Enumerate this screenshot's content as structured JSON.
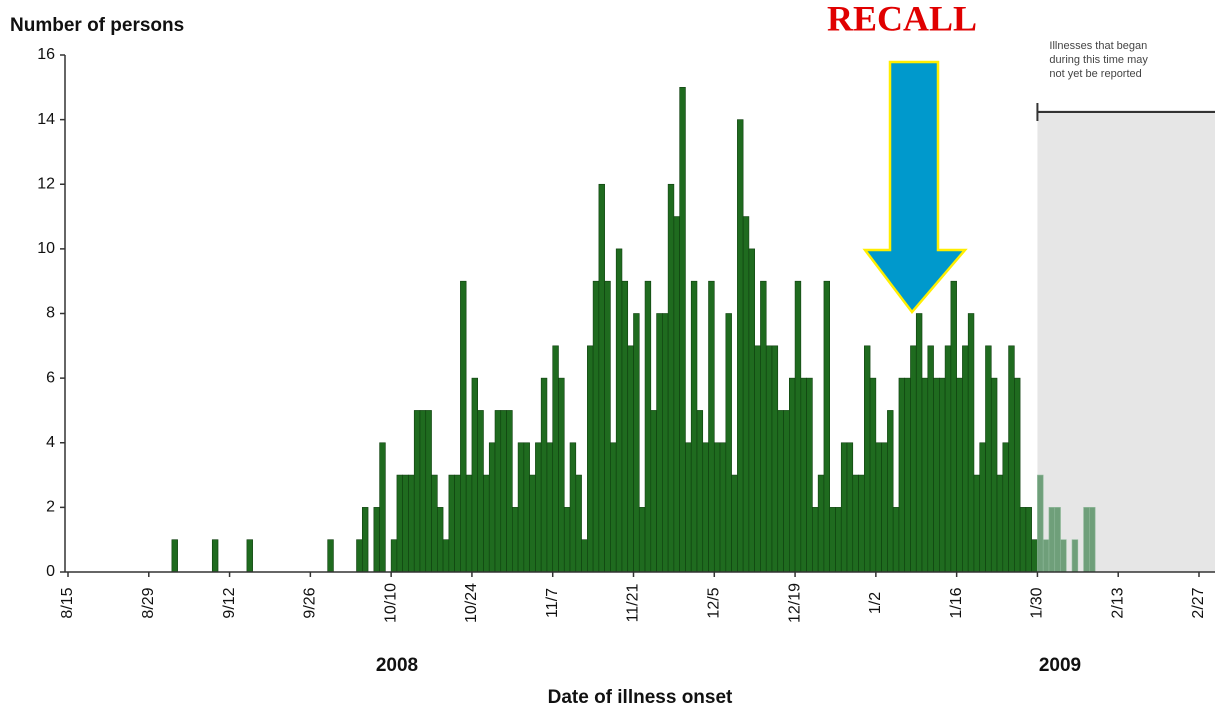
{
  "chart_data": {
    "type": "bar",
    "y_label": "Number of persons",
    "x_label": "Date of illness onset",
    "year_labels": [
      "2008",
      "2009"
    ],
    "recall_label": "RECALL",
    "reporting_lag": {
      "from": "1/30",
      "lines": [
        "Illnesses that began",
        "during this time may",
        "not yet be reported"
      ]
    },
    "color": "#1f6b1f",
    "lag_color": "#6f9f7a",
    "shade_color": "#e6e6e6",
    "ylim": [
      0,
      16
    ],
    "yticks": [
      0,
      2,
      4,
      6,
      8,
      10,
      12,
      14,
      16
    ],
    "categories": [
      "8/15",
      null,
      null,
      null,
      null,
      null,
      null,
      null,
      null,
      null,
      null,
      null,
      null,
      null,
      "8/29",
      null,
      null,
      null,
      null,
      null,
      null,
      null,
      null,
      null,
      null,
      null,
      null,
      null,
      "9/12",
      null,
      null,
      null,
      null,
      null,
      null,
      null,
      null,
      null,
      null,
      null,
      null,
      null,
      "9/26",
      null,
      null,
      null,
      null,
      null,
      null,
      null,
      null,
      null,
      null,
      null,
      null,
      null,
      "10/10",
      null,
      null,
      null,
      null,
      null,
      null,
      null,
      null,
      null,
      null,
      null,
      null,
      null,
      "10/24",
      null,
      null,
      null,
      null,
      null,
      null,
      null,
      null,
      null,
      null,
      null,
      null,
      null,
      "11/7",
      null,
      null,
      null,
      null,
      null,
      null,
      null,
      null,
      null,
      null,
      null,
      null,
      null,
      "11/21",
      null,
      null,
      null,
      null,
      null,
      null,
      null,
      null,
      null,
      null,
      null,
      null,
      null,
      "12/5",
      null,
      null,
      null,
      null,
      null,
      null,
      null,
      null,
      null,
      null,
      null,
      null,
      null,
      "12/19",
      null,
      null,
      null,
      null,
      null,
      null,
      null,
      null,
      null,
      null,
      null,
      null,
      null,
      "1/2",
      null,
      null,
      null,
      null,
      null,
      null,
      null,
      null,
      null,
      null,
      null,
      null,
      null,
      "1/16",
      null,
      null,
      null,
      null,
      null,
      null,
      null,
      null,
      null,
      null,
      null,
      null,
      null,
      "1/30",
      null,
      null,
      null,
      null,
      null,
      null,
      null,
      null,
      null,
      null,
      null,
      null,
      null,
      "2/13",
      null,
      null,
      null,
      null,
      null,
      null,
      null,
      null,
      null,
      null,
      null,
      null,
      null,
      "2/27"
    ],
    "values": [
      0,
      0,
      0,
      0,
      0,
      0,
      0,
      0,
      0,
      0,
      0,
      0,
      0,
      0,
      0,
      0,
      0,
      0,
      1,
      0,
      0,
      0,
      0,
      0,
      0,
      1,
      0,
      0,
      0,
      0,
      0,
      1,
      0,
      0,
      0,
      0,
      0,
      0,
      0,
      0,
      0,
      0,
      0,
      0,
      0,
      1,
      0,
      0,
      0,
      0,
      1,
      2,
      0,
      2,
      4,
      0,
      1,
      3,
      3,
      3,
      5,
      5,
      5,
      3,
      2,
      1,
      3,
      3,
      9,
      3,
      6,
      5,
      3,
      4,
      5,
      5,
      5,
      2,
      4,
      4,
      3,
      4,
      6,
      4,
      7,
      6,
      2,
      4,
      3,
      1,
      7,
      9,
      12,
      9,
      4,
      10,
      9,
      7,
      8,
      2,
      9,
      5,
      8,
      8,
      12,
      11,
      15,
      4,
      9,
      5,
      4,
      9,
      4,
      4,
      8,
      3,
      14,
      11,
      10,
      7,
      9,
      7,
      7,
      5,
      5,
      6,
      9,
      6,
      6,
      2,
      3,
      9,
      2,
      2,
      4,
      4,
      3,
      3,
      7,
      6,
      4,
      4,
      5,
      2,
      6,
      6,
      7,
      8,
      6,
      7,
      6,
      6,
      7,
      9,
      6,
      7,
      8,
      3,
      4,
      7,
      6,
      3,
      4,
      7,
      6,
      2,
      2,
      1,
      3,
      1,
      2,
      2,
      1,
      0,
      1,
      0,
      2,
      2,
      0,
      0,
      0,
      0,
      0,
      0,
      0,
      0,
      0,
      0,
      0,
      0,
      0,
      0,
      0,
      0,
      0,
      0,
      0
    ]
  }
}
